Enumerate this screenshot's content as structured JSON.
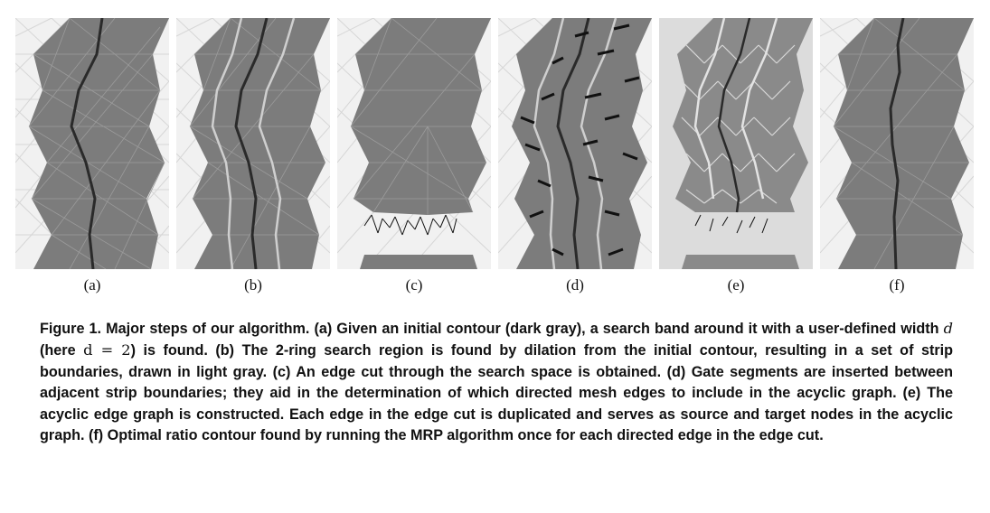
{
  "figure": {
    "panels": [
      {
        "id": "a",
        "label": "(a)"
      },
      {
        "id": "b",
        "label": "(b)"
      },
      {
        "id": "c",
        "label": "(c)"
      },
      {
        "id": "d",
        "label": "(d)"
      },
      {
        "id": "e",
        "label": "(e)"
      },
      {
        "id": "f",
        "label": "(f)"
      }
    ],
    "caption": {
      "lead": "Figure 1. Major steps of our algorithm.",
      "a_prefix": "(a) Given an initial contour (dark gray), a search band around it with a user-defined width",
      "d_symbol": "d",
      "here_open": "(here",
      "equation": "d = 2",
      "a_suffix": ") is found.",
      "b": "(b) The 2-ring search region is found by dilation from the initial contour, resulting in a set of strip boundaries, drawn in light gray.",
      "c": "(c) An edge cut through the search space is obtained.",
      "d": "(d) Gate segments are inserted between adjacent strip boundaries; they aid in the determination of which directed mesh edges to include in the acyclic graph.",
      "e": "(e) The acyclic edge graph is constructed.",
      "e2": "Each edge in the edge cut is duplicated and serves as source and target nodes in the acyclic graph.",
      "f": "(f) Optimal ratio contour found by running the MRP algorithm once for each directed edge in the edge cut."
    },
    "colors": {
      "mesh_background": "#f1f1f1",
      "mesh_lines": "#d4d4d4",
      "search_band": "#7a7a7a",
      "contour": "#2a2a2a",
      "strip_boundary": "#c8c8c8",
      "gate_segment": "#111111"
    }
  }
}
